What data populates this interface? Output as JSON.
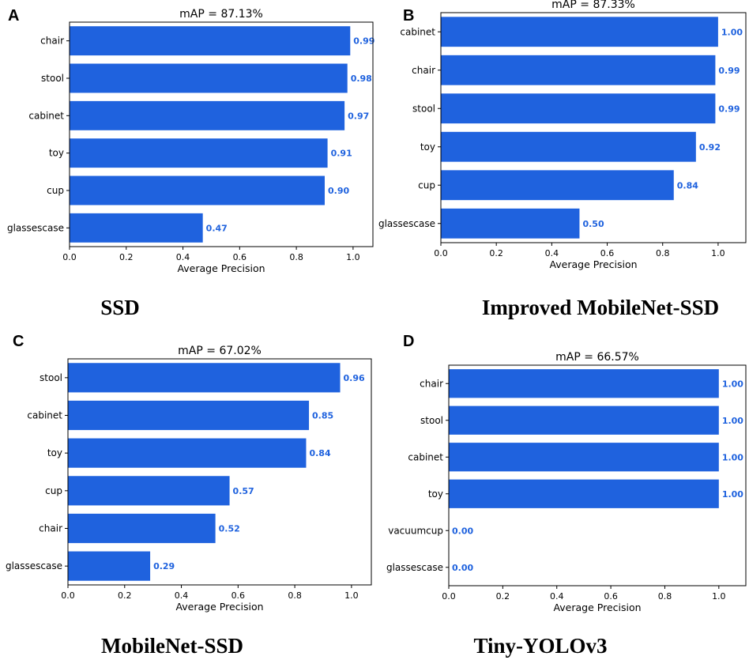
{
  "colors": {
    "bar": "#1f62de",
    "value_text": "#1f62de",
    "axis": "#000000"
  },
  "chart_data": [
    {
      "panel": "A",
      "caption": "SSD",
      "type": "bar",
      "orientation": "horizontal",
      "title": "mAP = 87.13%",
      "xlabel": "Average Precision",
      "ylabel": "",
      "xlim": [
        0,
        1.07
      ],
      "xticks": [
        "0.0",
        "0.2",
        "0.4",
        "0.6",
        "0.8",
        "1.0"
      ],
      "categories": [
        "chair",
        "stool",
        "cabinet",
        "toy",
        "cup",
        "glassescase"
      ],
      "values": [
        0.99,
        0.98,
        0.97,
        0.91,
        0.9,
        0.47
      ],
      "value_labels": [
        "0.99",
        "0.98",
        "0.97",
        "0.91",
        "0.90",
        "0.47"
      ]
    },
    {
      "panel": "B",
      "caption": "Improved MobileNet-SSD",
      "type": "bar",
      "orientation": "horizontal",
      "title": "mAP = 87.33%",
      "xlabel": "Average Precision",
      "ylabel": "",
      "xlim": [
        0,
        1.1
      ],
      "xticks": [
        "0.0",
        "0.2",
        "0.4",
        "0.6",
        "0.8",
        "1.0"
      ],
      "categories": [
        "cabinet",
        "chair",
        "stool",
        "toy",
        "cup",
        "glassescase"
      ],
      "values": [
        1.0,
        0.99,
        0.99,
        0.92,
        0.84,
        0.5
      ],
      "value_labels": [
        "1.00",
        "0.99",
        "0.99",
        "0.92",
        "0.84",
        "0.50"
      ]
    },
    {
      "panel": "C",
      "caption": "MobileNet-SSD",
      "type": "bar",
      "orientation": "horizontal",
      "title": "mAP = 67.02%",
      "xlabel": "Average Precision",
      "ylabel": "",
      "xlim": [
        0,
        1.07
      ],
      "xticks": [
        "0.0",
        "0.2",
        "0.4",
        "0.6",
        "0.8",
        "1.0"
      ],
      "categories": [
        "stool",
        "cabinet",
        "toy",
        "cup",
        "chair",
        "glassescase"
      ],
      "values": [
        0.96,
        0.85,
        0.84,
        0.57,
        0.52,
        0.29
      ],
      "value_labels": [
        "0.96",
        "0.85",
        "0.84",
        "0.57",
        "0.52",
        "0.29"
      ]
    },
    {
      "panel": "D",
      "caption": "Tiny-YOLOv3",
      "type": "bar",
      "orientation": "horizontal",
      "title": "mAP = 66.57%",
      "xlabel": "Average Precision",
      "ylabel": "",
      "xlim": [
        0,
        1.1
      ],
      "xticks": [
        "0.0",
        "0.2",
        "0.4",
        "0.6",
        "0.8",
        "1.0"
      ],
      "categories": [
        "chair",
        "stool",
        "cabinet",
        "toy",
        "vacuumcup",
        "glassescase"
      ],
      "values": [
        1.0,
        1.0,
        1.0,
        1.0,
        0.0,
        0.0
      ],
      "value_labels": [
        "1.00",
        "1.00",
        "1.00",
        "1.00",
        "0.00",
        "0.00"
      ]
    }
  ]
}
